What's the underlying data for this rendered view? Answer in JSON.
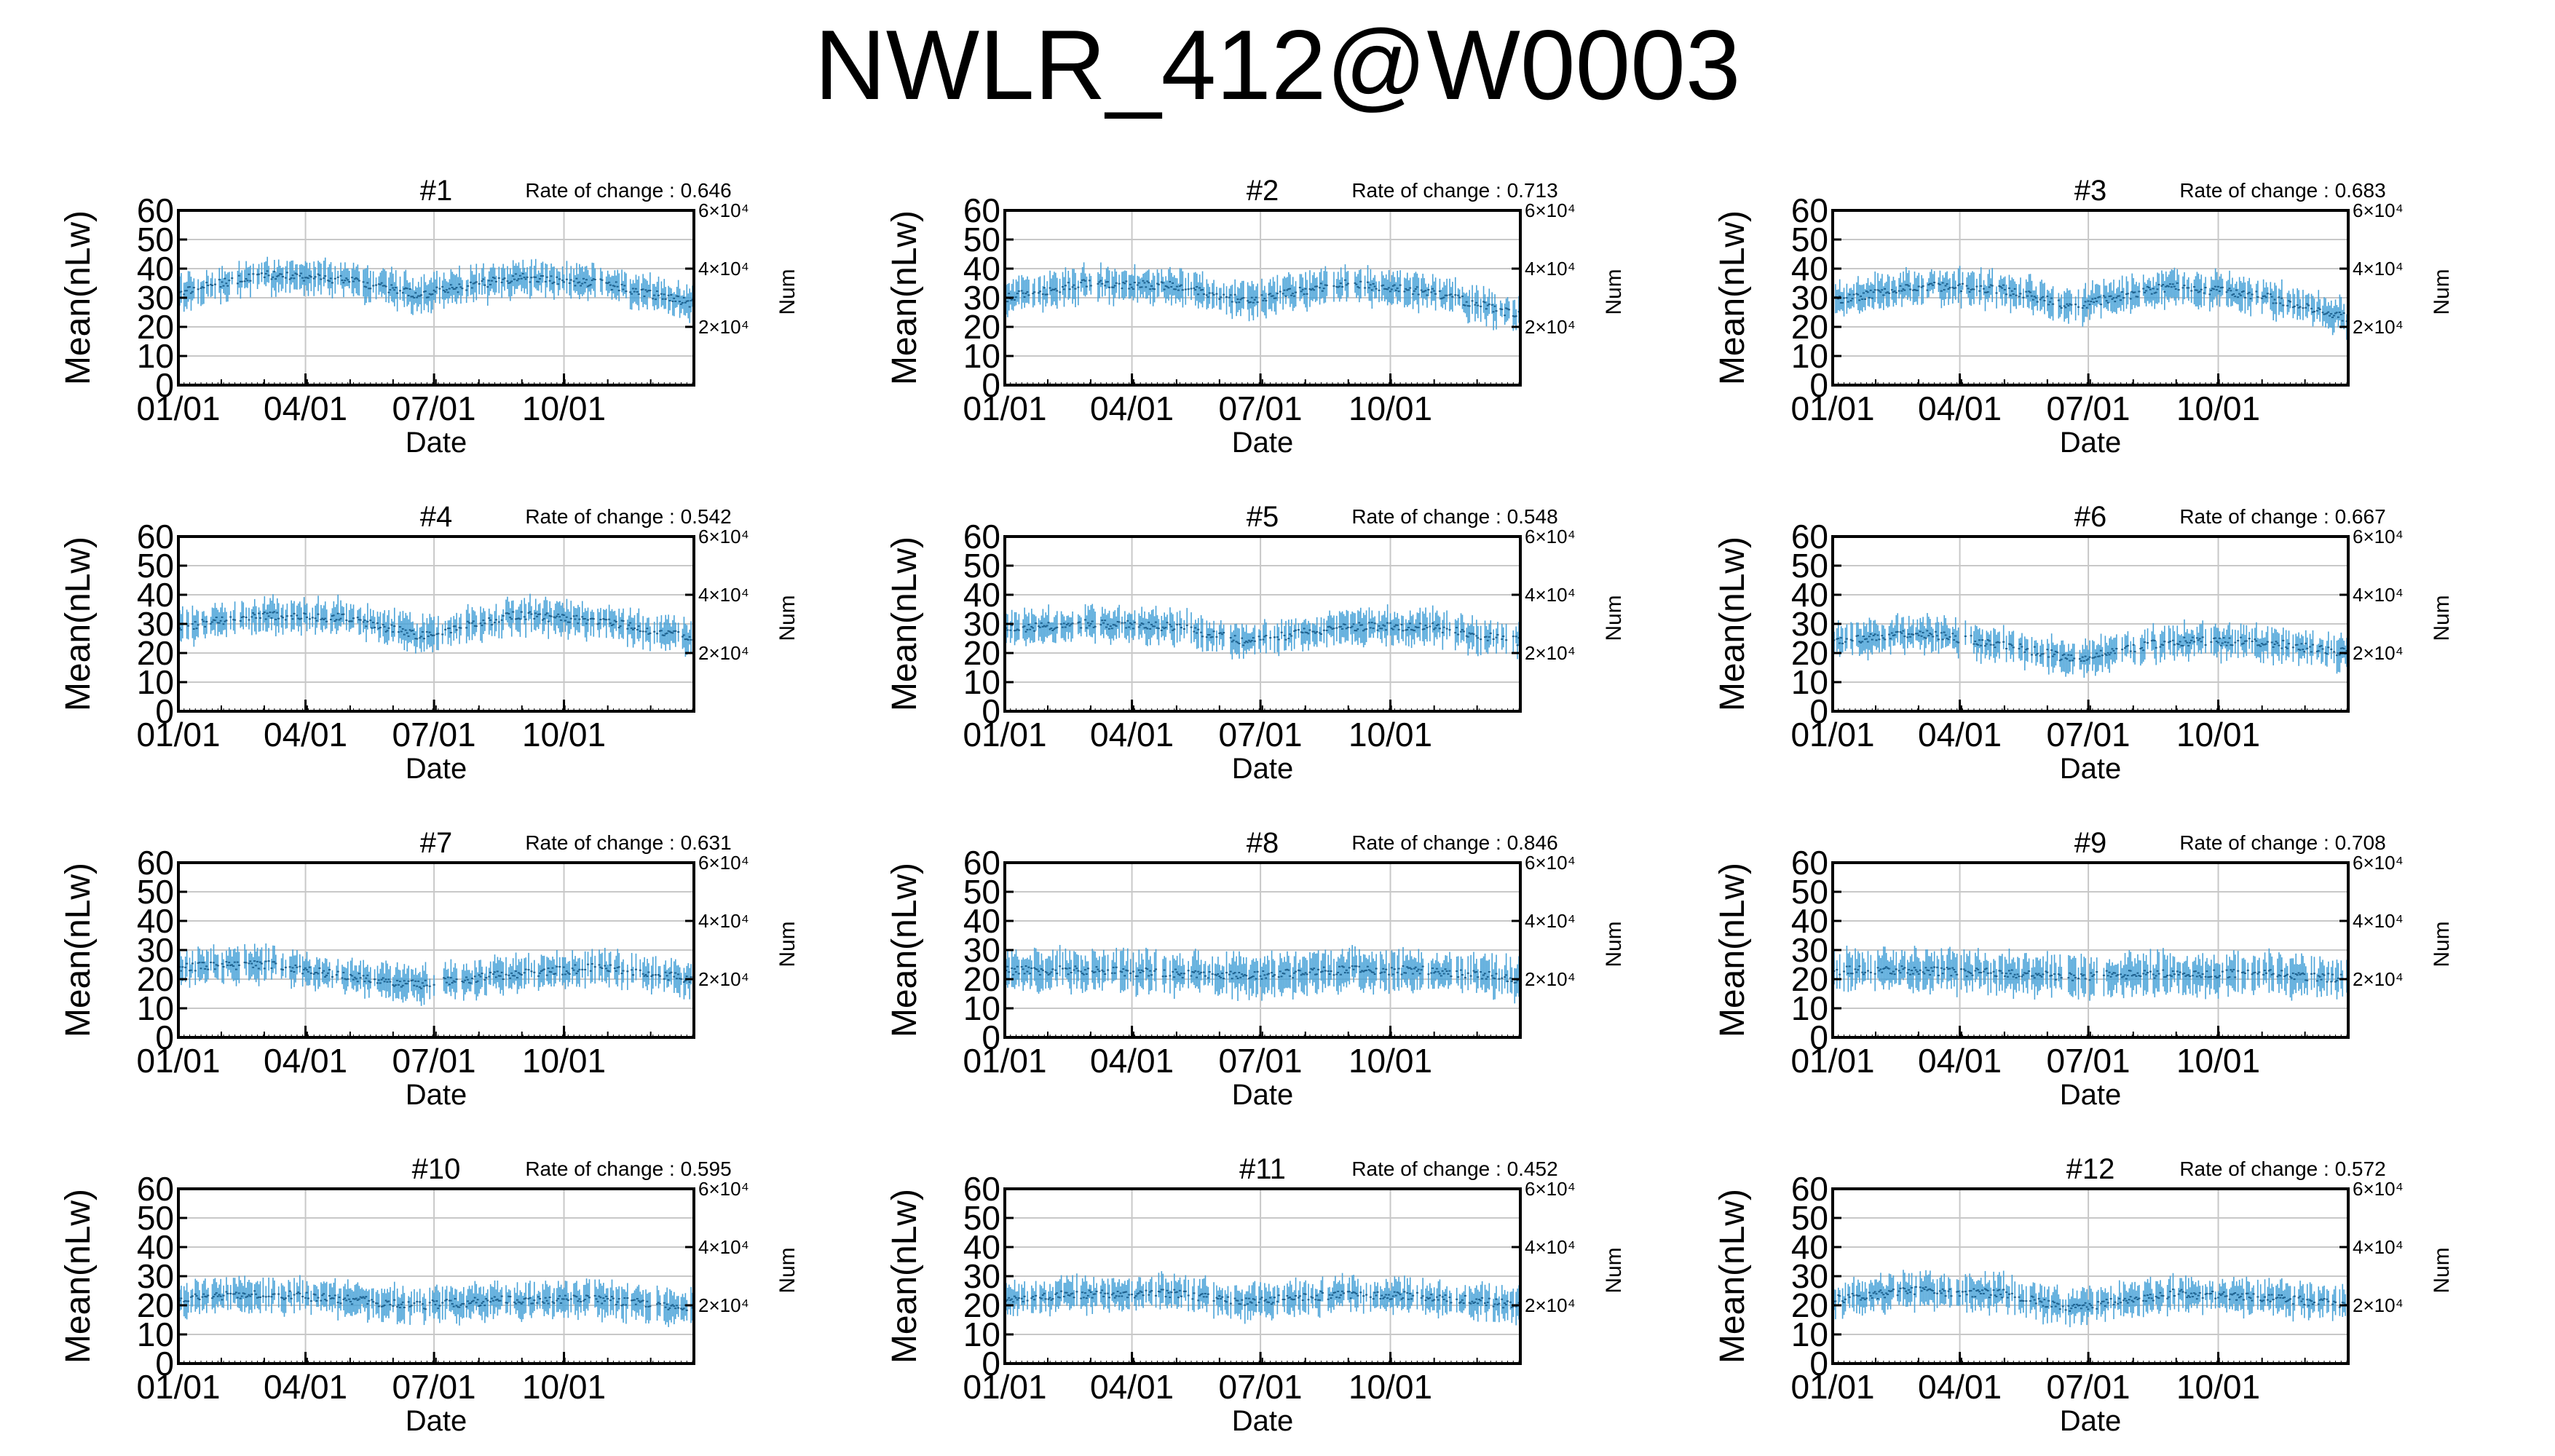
{
  "title": "NWLR_412@W0003",
  "panel_common": {
    "ylabel": "Mean(nLw)",
    "xlabel": "Date",
    "y2label": "Num",
    "rate_label": "Rate of change : ",
    "y_ticks": [
      "0",
      "10",
      "20",
      "30",
      "40",
      "50",
      "60"
    ],
    "y2_ticks": [
      "2×10⁴",
      "4×10⁴",
      "6×10⁴"
    ],
    "x_ticks": [
      "01/01",
      "04/01",
      "07/01",
      "10/01"
    ],
    "series_color": "#4aa3d8",
    "mean_color": "#1f5f8b"
  },
  "chart_data": [
    {
      "type": "line",
      "title": "#1",
      "rate_of_change": "0.646",
      "xlabel": "Date",
      "ylabel": "Mean(nLw)",
      "y2label": "Num",
      "ylim": [
        0,
        60
      ],
      "y2lim": [
        0,
        60000
      ],
      "x_range": [
        "01/01",
        "12/31"
      ],
      "x_ticks": [
        "01/01",
        "04/01",
        "07/01",
        "10/01"
      ],
      "x_tick_days": [
        0,
        90,
        181,
        273
      ],
      "grid": true,
      "profile": {
        "day": [
          0,
          60,
          120,
          170,
          240,
          300,
          365
        ],
        "mean": [
          32,
          38,
          36,
          31,
          37,
          35,
          28
        ],
        "spread": 5
      }
    },
    {
      "type": "line",
      "title": "#2",
      "rate_of_change": "0.713",
      "xlabel": "Date",
      "ylabel": "Mean(nLw)",
      "y2label": "Num",
      "ylim": [
        0,
        60
      ],
      "y2lim": [
        0,
        60000
      ],
      "x_range": [
        "01/01",
        "12/31"
      ],
      "x_ticks": [
        "01/01",
        "04/01",
        "07/01",
        "10/01"
      ],
      "x_tick_days": [
        0,
        90,
        181,
        273
      ],
      "grid": true,
      "profile": {
        "day": [
          0,
          60,
          120,
          170,
          240,
          300,
          365
        ],
        "mean": [
          30,
          35,
          34,
          29,
          35,
          32,
          24
        ],
        "spread": 5
      }
    },
    {
      "type": "line",
      "title": "#3",
      "rate_of_change": "0.683",
      "xlabel": "Date",
      "ylabel": "Mean(nLw)",
      "y2label": "Num",
      "ylim": [
        0,
        60
      ],
      "y2lim": [
        0,
        60000
      ],
      "x_range": [
        "01/01",
        "12/31"
      ],
      "x_ticks": [
        "01/01",
        "04/01",
        "07/01",
        "10/01"
      ],
      "x_tick_days": [
        0,
        90,
        181,
        273
      ],
      "grid": true,
      "profile": {
        "day": [
          0,
          60,
          120,
          170,
          240,
          300,
          365
        ],
        "mean": [
          29,
          34,
          33,
          27,
          34,
          31,
          23
        ],
        "spread": 5
      }
    },
    {
      "type": "line",
      "title": "#4",
      "rate_of_change": "0.542",
      "xlabel": "Date",
      "ylabel": "Mean(nLw)",
      "y2label": "Num",
      "ylim": [
        0,
        60
      ],
      "y2lim": [
        0,
        60000
      ],
      "x_range": [
        "01/01",
        "12/31"
      ],
      "x_ticks": [
        "01/01",
        "04/01",
        "07/01",
        "10/01"
      ],
      "x_tick_days": [
        0,
        90,
        181,
        273
      ],
      "grid": true,
      "profile": {
        "day": [
          0,
          60,
          120,
          170,
          240,
          300,
          365
        ],
        "mean": [
          29,
          33,
          32,
          26,
          33,
          31,
          25
        ],
        "spread": 5
      }
    },
    {
      "type": "line",
      "title": "#5",
      "rate_of_change": "0.548",
      "xlabel": "Date",
      "ylabel": "Mean(nLw)",
      "y2label": "Num",
      "ylim": [
        0,
        60
      ],
      "y2lim": [
        0,
        60000
      ],
      "x_range": [
        "01/01",
        "12/31"
      ],
      "x_ticks": [
        "01/01",
        "04/01",
        "07/01",
        "10/01"
      ],
      "x_tick_days": [
        0,
        90,
        181,
        273
      ],
      "grid": true,
      "profile": {
        "day": [
          0,
          60,
          120,
          170,
          240,
          300,
          365
        ],
        "mean": [
          28,
          30,
          29,
          24,
          29,
          29,
          24
        ],
        "spread": 5
      }
    },
    {
      "type": "line",
      "title": "#6",
      "rate_of_change": "0.667",
      "xlabel": "Date",
      "ylabel": "Mean(nLw)",
      "y2label": "Num",
      "ylim": [
        0,
        60
      ],
      "y2lim": [
        0,
        60000
      ],
      "x_range": [
        "01/01",
        "12/31"
      ],
      "x_ticks": [
        "01/01",
        "04/01",
        "07/01",
        "10/01"
      ],
      "x_tick_days": [
        0,
        90,
        181,
        273
      ],
      "grid": true,
      "profile": {
        "day": [
          0,
          60,
          120,
          170,
          240,
          300,
          365
        ],
        "mean": [
          24,
          27,
          23,
          18,
          24,
          24,
          20
        ],
        "spread": 5
      }
    },
    {
      "type": "line",
      "title": "#7",
      "rate_of_change": "0.631",
      "xlabel": "Date",
      "ylabel": "Mean(nLw)",
      "y2label": "Num",
      "ylim": [
        0,
        60
      ],
      "y2lim": [
        0,
        60000
      ],
      "x_range": [
        "01/01",
        "12/31"
      ],
      "x_ticks": [
        "01/01",
        "04/01",
        "07/01",
        "10/01"
      ],
      "x_tick_days": [
        0,
        90,
        181,
        273
      ],
      "grid": true,
      "profile": {
        "day": [
          0,
          60,
          120,
          170,
          240,
          300,
          365
        ],
        "mean": [
          24,
          25,
          21,
          18,
          22,
          24,
          20
        ],
        "spread": 5
      }
    },
    {
      "type": "line",
      "title": "#8",
      "rate_of_change": "0.846",
      "xlabel": "Date",
      "ylabel": "Mean(nLw)",
      "y2label": "Num",
      "ylim": [
        0,
        60
      ],
      "y2lim": [
        0,
        60000
      ],
      "x_range": [
        "01/01",
        "12/31"
      ],
      "x_ticks": [
        "01/01",
        "04/01",
        "07/01",
        "10/01"
      ],
      "x_tick_days": [
        0,
        90,
        181,
        273
      ],
      "grid": true,
      "profile": {
        "day": [
          0,
          60,
          120,
          170,
          240,
          300,
          365
        ],
        "mean": [
          23,
          23,
          22,
          21,
          23,
          23,
          20
        ],
        "spread": 6
      }
    },
    {
      "type": "line",
      "title": "#9",
      "rate_of_change": "0.708",
      "xlabel": "Date",
      "ylabel": "Mean(nLw)",
      "y2label": "Num",
      "ylim": [
        0,
        60
      ],
      "y2lim": [
        0,
        60000
      ],
      "x_range": [
        "01/01",
        "12/31"
      ],
      "x_ticks": [
        "01/01",
        "04/01",
        "07/01",
        "10/01"
      ],
      "x_tick_days": [
        0,
        90,
        181,
        273
      ],
      "grid": true,
      "profile": {
        "day": [
          0,
          60,
          120,
          170,
          240,
          300,
          365
        ],
        "mean": [
          23,
          23,
          22,
          21,
          22,
          22,
          20
        ],
        "spread": 6
      }
    },
    {
      "type": "line",
      "title": "#10",
      "rate_of_change": "0.595",
      "xlabel": "Date",
      "ylabel": "Mean(nLw)",
      "y2label": "Num",
      "ylim": [
        0,
        60
      ],
      "y2lim": [
        0,
        60000
      ],
      "x_range": [
        "01/01",
        "12/31"
      ],
      "x_ticks": [
        "01/01",
        "04/01",
        "07/01",
        "10/01"
      ],
      "x_tick_days": [
        0,
        90,
        181,
        273
      ],
      "grid": true,
      "profile": {
        "day": [
          0,
          60,
          120,
          170,
          240,
          300,
          365
        ],
        "mean": [
          22,
          24,
          22,
          20,
          22,
          22,
          19
        ],
        "spread": 5
      }
    },
    {
      "type": "line",
      "title": "#11",
      "rate_of_change": "0.452",
      "xlabel": "Date",
      "ylabel": "Mean(nLw)",
      "y2label": "Num",
      "ylim": [
        0,
        60
      ],
      "y2lim": [
        0,
        60000
      ],
      "x_range": [
        "01/01",
        "12/31"
      ],
      "x_ticks": [
        "01/01",
        "04/01",
        "07/01",
        "10/01"
      ],
      "x_tick_days": [
        0,
        90,
        181,
        273
      ],
      "grid": true,
      "profile": {
        "day": [
          0,
          60,
          120,
          170,
          240,
          300,
          365
        ],
        "mean": [
          22,
          24,
          24,
          21,
          24,
          23,
          20
        ],
        "spread": 5
      }
    },
    {
      "type": "line",
      "title": "#12",
      "rate_of_change": "0.572",
      "xlabel": "Date",
      "ylabel": "Mean(nLw)",
      "y2label": "Num",
      "ylim": [
        0,
        60
      ],
      "y2lim": [
        0,
        60000
      ],
      "x_range": [
        "01/01",
        "12/31"
      ],
      "x_ticks": [
        "01/01",
        "04/01",
        "07/01",
        "10/01"
      ],
      "x_tick_days": [
        0,
        90,
        181,
        273
      ],
      "grid": true,
      "profile": {
        "day": [
          0,
          60,
          120,
          170,
          240,
          300,
          365
        ],
        "mean": [
          22,
          25,
          24,
          19,
          24,
          23,
          20
        ],
        "spread": 5
      }
    }
  ]
}
